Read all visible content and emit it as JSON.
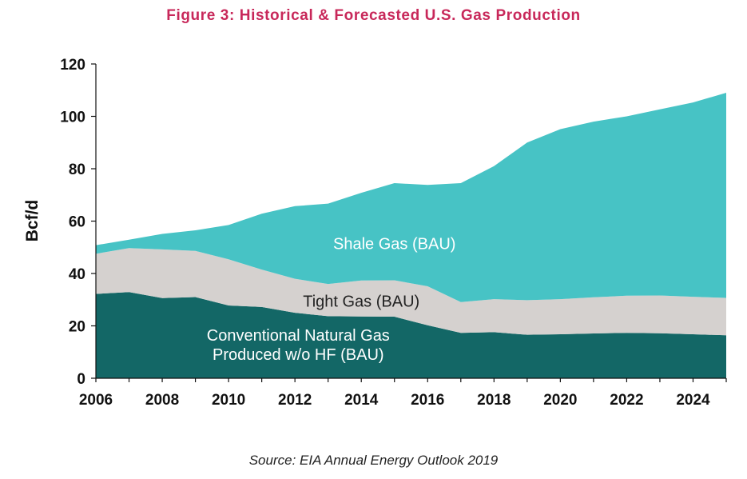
{
  "chart_data": {
    "type": "area",
    "stacked": true,
    "title": "Figure 3: Historical & Forecasted U.S. Gas Production",
    "ylabel": "Bcf/d",
    "xlabel": "",
    "xlim": [
      2006,
      2025
    ],
    "ylim": [
      0,
      120
    ],
    "yticks": [
      0,
      20,
      40,
      60,
      80,
      100,
      120
    ],
    "xticks": [
      2006,
      2008,
      2010,
      2012,
      2014,
      2016,
      2018,
      2020,
      2022,
      2024
    ],
    "x": [
      2006,
      2007,
      2008,
      2009,
      2010,
      2011,
      2012,
      2013,
      2014,
      2015,
      2016,
      2017,
      2018,
      2019,
      2020,
      2021,
      2022,
      2023,
      2024,
      2025
    ],
    "series": [
      {
        "name": "Conventional Natural Gas Produced w/o HF (BAU)",
        "label_lines": [
          "Conventional Natural Gas",
          "Produced w/o HF (BAU)"
        ],
        "color": "#136766",
        "label_color": "#ffffff",
        "label_anchor": [
          2012.1,
          12.8
        ],
        "values": [
          32.2,
          32.9,
          30.6,
          31.0,
          27.8,
          27.2,
          25.0,
          23.7,
          23.6,
          23.5,
          20.2,
          17.3,
          17.6,
          16.6,
          16.8,
          17.1,
          17.3,
          17.2,
          16.8,
          16.4
        ]
      },
      {
        "name": "Tight Gas (BAU)",
        "label_lines": [
          "Tight Gas (BAU)"
        ],
        "color": "#d5d1cf",
        "label_color": "#222222",
        "label_anchor": [
          2014.0,
          29.5
        ],
        "values": [
          15.3,
          16.8,
          18.6,
          17.6,
          17.6,
          14.3,
          13.0,
          12.3,
          13.7,
          13.9,
          14.9,
          11.8,
          12.6,
          13.2,
          13.4,
          13.8,
          14.2,
          14.4,
          14.3,
          14.3
        ]
      },
      {
        "name": "Shale Gas (BAU)",
        "label_lines": [
          "Shale Gas (BAU)"
        ],
        "color": "#47c3c5",
        "label_color": "#ffffff",
        "label_anchor": [
          2015.0,
          51.5
        ],
        "values": [
          3.3,
          3.2,
          5.9,
          7.9,
          13.1,
          21.3,
          27.7,
          30.7,
          33.5,
          37.1,
          38.7,
          45.4,
          50.8,
          60.2,
          64.9,
          67.1,
          68.5,
          71.1,
          74.2,
          78.3
        ]
      }
    ],
    "source": "Source: EIA Annual Energy Outlook 2019"
  }
}
